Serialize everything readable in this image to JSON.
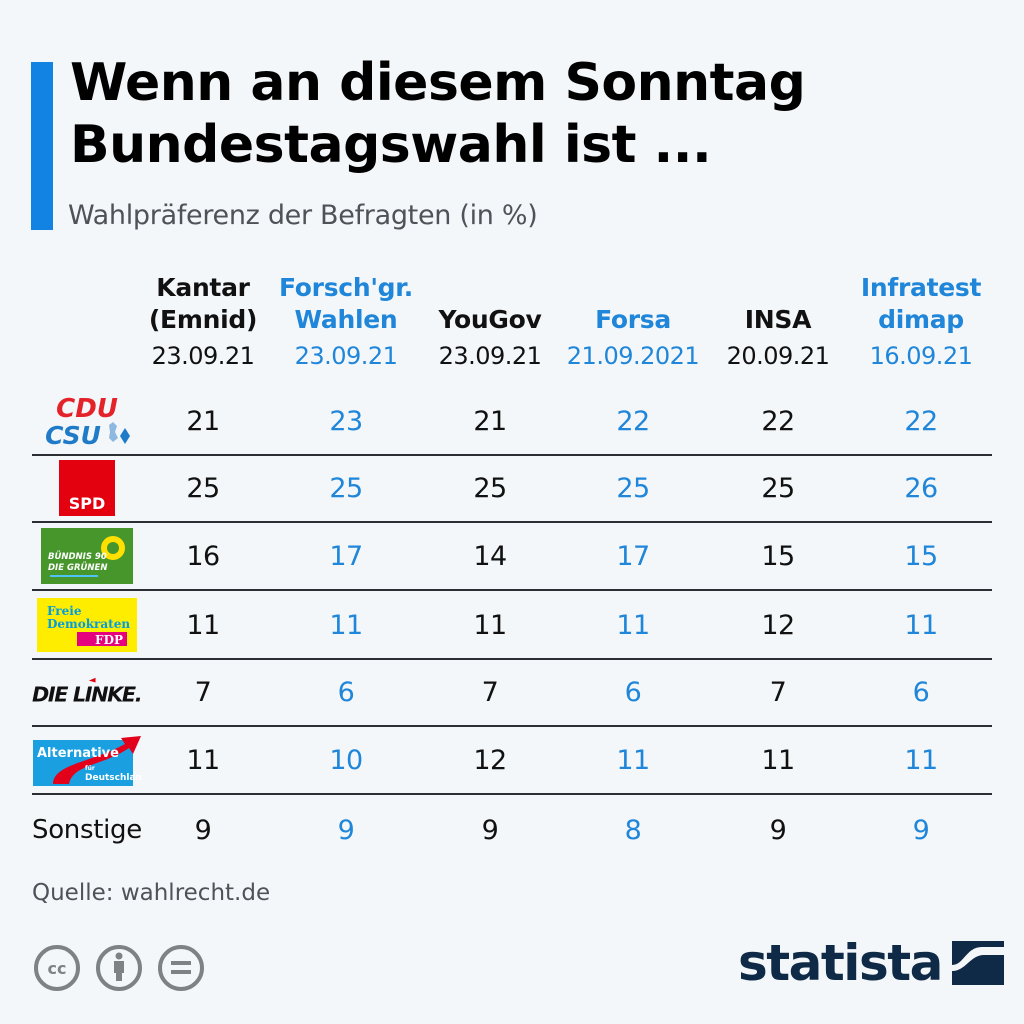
{
  "header": {
    "title_line1": "Wenn an diesem Sonntag",
    "title_line2": "Bundestagswahl ist ...",
    "subtitle": "Wahlpräferenz der Befragten (in %)",
    "accent_color": "#1283e2"
  },
  "columns": [
    {
      "name_line1": "Kantar",
      "name_line2": "(Emnid)",
      "date": "23.09.21",
      "color": "black"
    },
    {
      "name_line1": "Forsch'gr.",
      "name_line2": "Wahlen",
      "date": "23.09.21",
      "color": "blue"
    },
    {
      "name_line1": "",
      "name_line2": "YouGov",
      "date": "23.09.21",
      "color": "black"
    },
    {
      "name_line1": "",
      "name_line2": "Forsa",
      "date": "21.09.2021",
      "color": "blue"
    },
    {
      "name_line1": "",
      "name_line2": "INSA",
      "date": "20.09.21",
      "color": "black"
    },
    {
      "name_line1": "Infratest",
      "name_line2": "dimap",
      "date": "16.09.21",
      "color": "blue"
    }
  ],
  "rows": [
    {
      "party": "CDU/CSU",
      "logo": "cdu-csu-logo",
      "logo_text": [
        "CDU",
        "CSU"
      ],
      "values": [
        "21",
        "23",
        "21",
        "22",
        "22",
        "22"
      ]
    },
    {
      "party": "SPD",
      "logo": "spd-logo",
      "logo_text": [
        "SPD"
      ],
      "values": [
        "25",
        "25",
        "25",
        "25",
        "25",
        "26"
      ]
    },
    {
      "party": "Bündnis 90/Die Grünen",
      "logo": "gruene-logo",
      "logo_text": [
        "BÜNDNIS 90",
        "DIE GRÜNEN"
      ],
      "values": [
        "16",
        "17",
        "14",
        "17",
        "15",
        "15"
      ]
    },
    {
      "party": "FDP",
      "logo": "fdp-logo",
      "logo_text": [
        "Freie",
        "Demokraten",
        "FDP"
      ],
      "values": [
        "11",
        "11",
        "11",
        "11",
        "12",
        "11"
      ]
    },
    {
      "party": "Die Linke",
      "logo": "linke-logo",
      "logo_text": [
        "DIE LINKE."
      ],
      "values": [
        "7",
        "6",
        "7",
        "6",
        "7",
        "6"
      ]
    },
    {
      "party": "AfD",
      "logo": "afd-logo",
      "logo_text": [
        "Alternative",
        "für",
        "Deutschland"
      ],
      "values": [
        "11",
        "10",
        "12",
        "11",
        "11",
        "11"
      ]
    },
    {
      "party": "Sonstige",
      "label": "Sonstige",
      "values": [
        "9",
        "9",
        "9",
        "8",
        "9",
        "9"
      ]
    }
  ],
  "footer": {
    "source": "Quelle: wahlrecht.de",
    "license_icons": [
      "cc-icon",
      "attribution-icon",
      "no-derivatives-icon"
    ],
    "brand": "statista"
  },
  "colors": {
    "blue_text": "#1f86d9",
    "black_text": "#111111",
    "brand_navy": "#0f2a46"
  },
  "chart_data": {
    "type": "table",
    "title": "Wenn an diesem Sonntag Bundestagswahl ist ...",
    "subtitle": "Wahlpräferenz der Befragten (in %)",
    "columns": [
      "Kantar (Emnid)",
      "Forsch'gr. Wahlen",
      "YouGov",
      "Forsa",
      "INSA",
      "Infratest dimap"
    ],
    "dates": [
      "23.09.21",
      "23.09.21",
      "23.09.21",
      "21.09.2021",
      "20.09.21",
      "16.09.21"
    ],
    "rows": [
      "CDU/CSU",
      "SPD",
      "Bündnis 90/Die Grünen",
      "FDP",
      "Die Linke",
      "AfD",
      "Sonstige"
    ],
    "values": [
      [
        21,
        23,
        21,
        22,
        22,
        22
      ],
      [
        25,
        25,
        25,
        25,
        25,
        26
      ],
      [
        16,
        17,
        14,
        17,
        15,
        15
      ],
      [
        11,
        11,
        11,
        11,
        12,
        11
      ],
      [
        7,
        6,
        7,
        6,
        7,
        6
      ],
      [
        11,
        10,
        12,
        11,
        11,
        11
      ],
      [
        9,
        9,
        9,
        8,
        9,
        9
      ]
    ],
    "unit": "%",
    "source": "Quelle: wahlrecht.de"
  }
}
